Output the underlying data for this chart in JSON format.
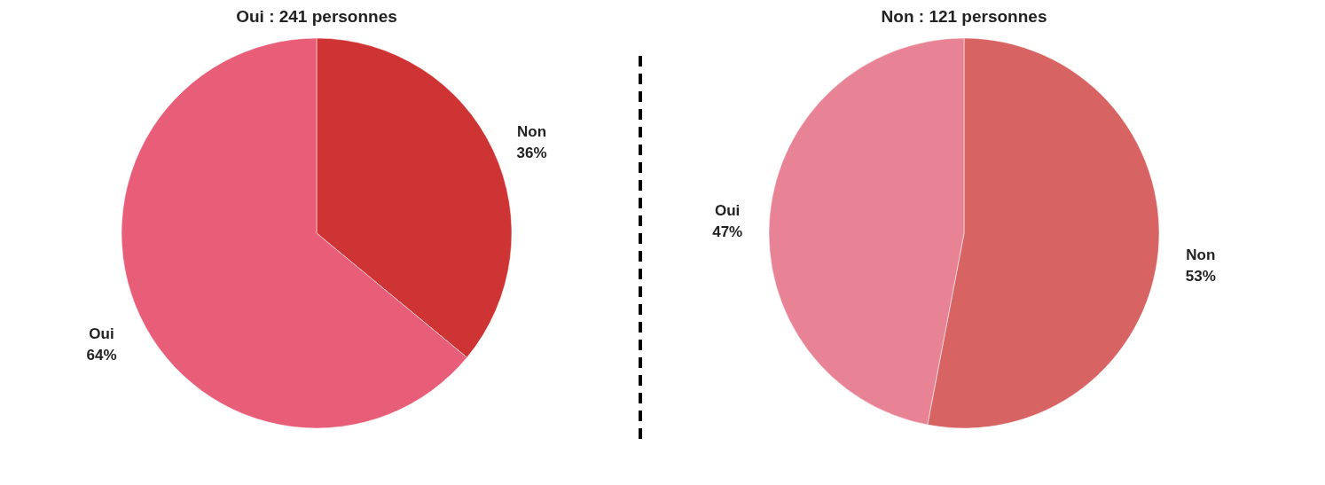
{
  "chart_data": [
    {
      "type": "pie",
      "title": "Oui : 241 personnes",
      "categories": [
        "Non",
        "Oui"
      ],
      "values": [
        36,
        64
      ],
      "colors": [
        "#cf3434",
        "#e85e78"
      ],
      "value_labels": [
        "36%",
        "64%"
      ]
    },
    {
      "type": "pie",
      "title": "Non : 121 personnes",
      "categories": [
        "Non",
        "Oui"
      ],
      "values": [
        53,
        47
      ],
      "colors": [
        "#d76363",
        "#e88395"
      ],
      "value_labels": [
        "53%",
        "47%"
      ]
    }
  ]
}
